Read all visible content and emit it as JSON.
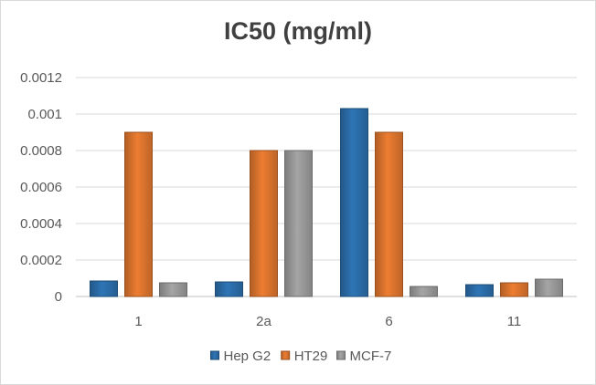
{
  "chart_data": {
    "type": "bar",
    "title": "IC50 (mg/ml)",
    "xlabel": "",
    "ylabel": "",
    "categories": [
      "1",
      "2a",
      "6",
      "11"
    ],
    "series": [
      {
        "name": "Hep G2",
        "color": "#2e75b6",
        "values": [
          8.5e-05,
          8e-05,
          0.00103,
          6.5e-05
        ]
      },
      {
        "name": "HT29",
        "color": "#ed7d31",
        "values": [
          0.0009,
          0.0008,
          0.0009,
          7.5e-05
        ]
      },
      {
        "name": "MCF-7",
        "color": "#a5a5a5",
        "values": [
          7.5e-05,
          0.0008,
          5.5e-05,
          9.5e-05
        ]
      }
    ],
    "ylim": [
      0,
      0.0012
    ],
    "yticks": [
      "0",
      "0.0002",
      "0.0004",
      "0.0006",
      "0.0008",
      "0.001",
      "0.0012"
    ],
    "ytick_values": [
      0,
      0.0002,
      0.0004,
      0.0006,
      0.0008,
      0.001,
      0.0012
    ],
    "grid": true,
    "legend_position": "bottom"
  }
}
